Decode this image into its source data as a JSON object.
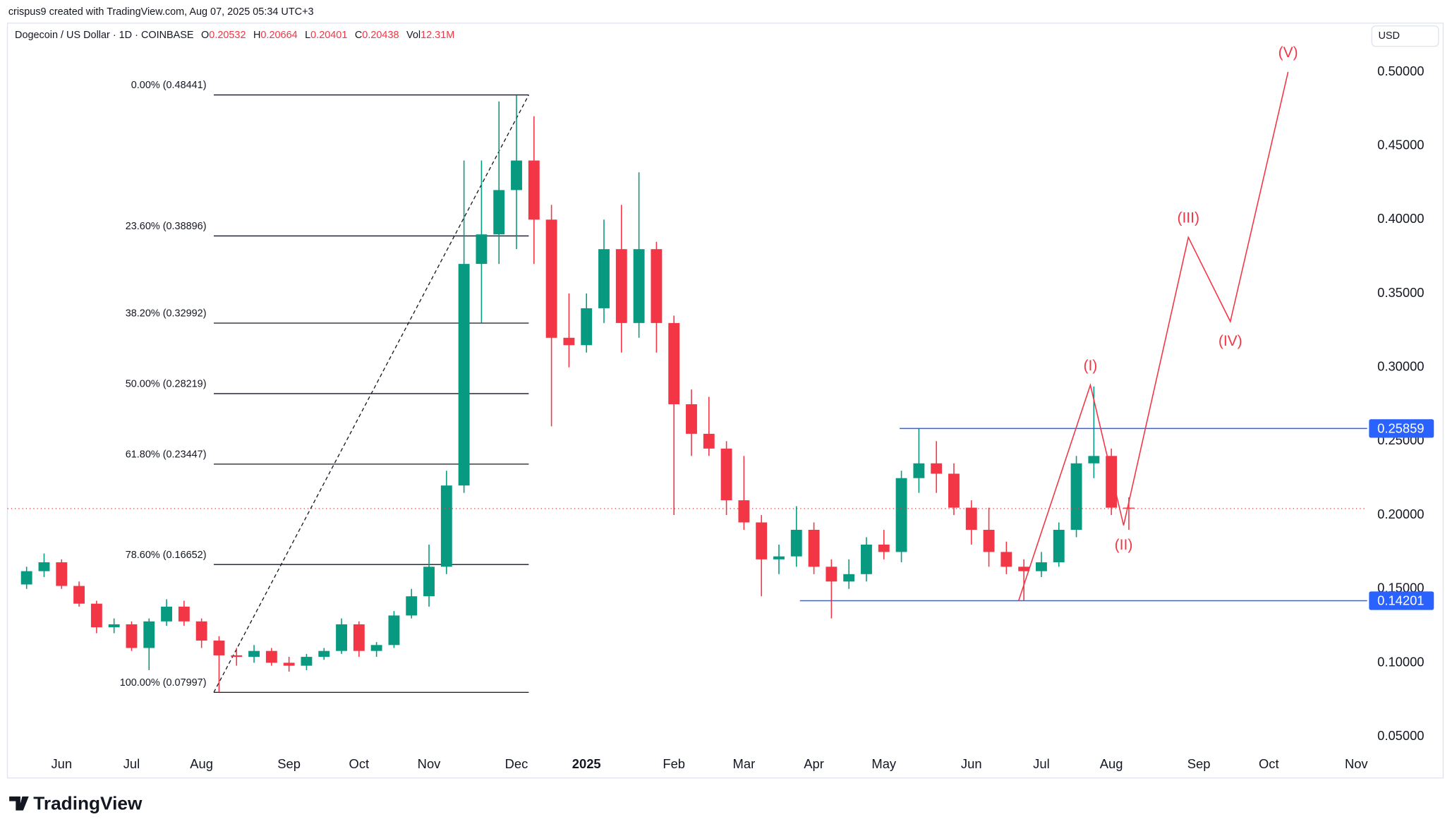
{
  "attribution": "crispus9 created with TradingView.com, Aug 07, 2025 05:34 UTC+3",
  "header": {
    "symbol": "Dogecoin / US Dollar · 1D · COINBASE",
    "quote": [
      {
        "key": "O",
        "value": "0.20532"
      },
      {
        "key": "H",
        "value": "0.20664"
      },
      {
        "key": "L",
        "value": "0.20401"
      },
      {
        "key": "C",
        "value": "0.20438"
      },
      {
        "key": "Vol",
        "value": "12.31M"
      }
    ]
  },
  "currency": "USD",
  "logo": "TradingView",
  "chart_data": {
    "type": "candlestick",
    "categories": [
      null,
      null,
      "Jun",
      null,
      null,
      null,
      "Jul",
      null,
      null,
      null,
      "Aug",
      null,
      null,
      null,
      null,
      "Sep",
      null,
      null,
      null,
      "Oct",
      null,
      null,
      null,
      "Nov",
      null,
      null,
      null,
      null,
      "Dec",
      null,
      null,
      null,
      "2025",
      null,
      null,
      null,
      null,
      "Feb",
      null,
      null,
      null,
      "Mar",
      null,
      null,
      null,
      "Apr",
      null,
      null,
      null,
      "May",
      null,
      null,
      null,
      null,
      "Jun",
      null,
      null,
      null,
      "Jul",
      null,
      null,
      null,
      "Aug",
      null,
      null,
      null,
      null,
      "Sep",
      null,
      null,
      null,
      "Oct",
      null,
      null,
      null,
      null,
      "Nov"
    ],
    "open": [
      0.153,
      0.162,
      0.168,
      0.152,
      0.14,
      0.124,
      0.126,
      0.11,
      0.128,
      0.138,
      0.128,
      0.115,
      0.105,
      0.104,
      0.108,
      0.1,
      0.098,
      0.104,
      0.108,
      0.126,
      0.108,
      0.112,
      0.132,
      0.145,
      0.165,
      0.22,
      0.37,
      0.39,
      0.42,
      0.44,
      0.4,
      0.32,
      0.315,
      0.34,
      0.38,
      0.33,
      0.38,
      0.33,
      0.275,
      0.255,
      0.245,
      0.21,
      0.195,
      0.17,
      0.172,
      0.19,
      0.165,
      0.155,
      0.16,
      0.18,
      0.175,
      0.225,
      0.235,
      0.228,
      0.205,
      0.19,
      0.175,
      0.165,
      0.162,
      0.168,
      0.19,
      0.235,
      0.24,
      0.205,
      null,
      null,
      null,
      null,
      null,
      null,
      null,
      null,
      null,
      null,
      null,
      null,
      null
    ],
    "high": [
      0.165,
      0.174,
      0.17,
      0.155,
      0.142,
      0.13,
      0.128,
      0.13,
      0.143,
      0.142,
      0.13,
      0.118,
      0.11,
      0.112,
      0.11,
      0.104,
      0.106,
      0.11,
      0.13,
      0.128,
      0.114,
      0.135,
      0.15,
      0.18,
      0.23,
      0.44,
      0.44,
      0.48,
      0.484,
      0.47,
      0.41,
      0.35,
      0.35,
      0.4,
      0.41,
      0.432,
      0.385,
      0.335,
      0.285,
      0.28,
      0.25,
      0.24,
      0.2,
      0.18,
      0.206,
      0.195,
      0.17,
      0.17,
      0.185,
      0.19,
      0.23,
      0.259,
      0.25,
      0.235,
      0.21,
      0.205,
      0.182,
      0.17,
      0.175,
      0.195,
      0.24,
      0.287,
      0.245,
      0.212,
      null,
      null,
      null,
      null,
      null,
      null,
      null,
      null,
      null,
      null,
      null,
      null,
      null
    ],
    "low": [
      0.15,
      0.158,
      0.15,
      0.138,
      0.12,
      0.12,
      0.108,
      0.095,
      0.125,
      0.125,
      0.11,
      0.08,
      0.098,
      0.1,
      0.098,
      0.094,
      0.095,
      0.102,
      0.106,
      0.104,
      0.104,
      0.11,
      0.13,
      0.138,
      0.16,
      0.215,
      0.33,
      0.37,
      0.38,
      0.37,
      0.26,
      0.3,
      0.31,
      0.33,
      0.31,
      0.32,
      0.31,
      0.2,
      0.24,
      0.24,
      0.2,
      0.19,
      0.145,
      0.16,
      0.165,
      0.16,
      0.13,
      0.15,
      0.155,
      0.17,
      0.168,
      0.215,
      0.215,
      0.2,
      0.18,
      0.165,
      0.16,
      0.142,
      0.158,
      0.165,
      0.185,
      0.225,
      0.2,
      0.19,
      null,
      null,
      null,
      null,
      null,
      null,
      null,
      null,
      null,
      null,
      null,
      null,
      null
    ],
    "close": [
      0.162,
      0.168,
      0.152,
      0.14,
      0.124,
      0.126,
      0.11,
      0.128,
      0.138,
      0.128,
      0.115,
      0.105,
      0.104,
      0.108,
      0.1,
      0.098,
      0.104,
      0.108,
      0.126,
      0.108,
      0.112,
      0.132,
      0.145,
      0.165,
      0.22,
      0.37,
      0.39,
      0.42,
      0.44,
      0.4,
      0.32,
      0.315,
      0.34,
      0.38,
      0.33,
      0.38,
      0.33,
      0.275,
      0.255,
      0.245,
      0.21,
      0.195,
      0.17,
      0.172,
      0.19,
      0.165,
      0.155,
      0.16,
      0.18,
      0.175,
      0.225,
      0.235,
      0.228,
      0.205,
      0.19,
      0.175,
      0.165,
      0.162,
      0.168,
      0.19,
      0.235,
      0.24,
      0.205,
      0.20438,
      null,
      null,
      null,
      null,
      null,
      null,
      null,
      null,
      null,
      null,
      null,
      null,
      null
    ],
    "up_color": "#089981",
    "down_color": "#f23645",
    "price_line_color": "#f23645",
    "ylim": [
      0.022,
      0.533
    ],
    "yticks": [
      {
        "value": 0.05,
        "label": "0.05000"
      },
      {
        "value": 0.1,
        "label": "0.10000"
      },
      {
        "value": 0.15,
        "label": "0.15000"
      },
      {
        "value": 0.2,
        "label": "0.20000"
      },
      {
        "value": 0.25,
        "label": "0.25000"
      },
      {
        "value": 0.3,
        "label": "0.30000"
      },
      {
        "value": 0.35,
        "label": "0.35000"
      },
      {
        "value": 0.4,
        "label": "0.40000"
      },
      {
        "value": 0.45,
        "label": "0.45000"
      },
      {
        "value": 0.5,
        "label": "0.50000"
      }
    ],
    "fib": {
      "start": 10.7,
      "end": 28.7,
      "color": "#131722",
      "levels": [
        {
          "value": 0.48441,
          "label": "0.00% (0.48441)"
        },
        {
          "value": 0.38896,
          "label": "23.60% (0.38896)"
        },
        {
          "value": 0.32992,
          "label": "38.20% (0.32992)"
        },
        {
          "value": 0.28219,
          "label": "50.00% (0.28219)"
        },
        {
          "value": 0.23447,
          "label": "61.80% (0.23447)"
        },
        {
          "value": 0.16652,
          "label": "78.60% (0.16652)"
        },
        {
          "value": 0.07997,
          "label": "100.00% (0.07997)"
        }
      ]
    },
    "levels": [
      {
        "value": 0.25859,
        "start": 49.9
      },
      {
        "value": 0.14201,
        "start": 44.2
      }
    ],
    "level_color": "#2962ff",
    "waves": {
      "color": "#f23645",
      "x": [
        56.7,
        60.8,
        62.7,
        66.4,
        68.8,
        72.1
      ],
      "values": [
        0.142,
        0.288,
        0.193,
        0.388,
        0.331,
        0.5
      ],
      "labels": [
        null,
        "(I)",
        "(II)",
        "(III)",
        "(IV)",
        "(V)"
      ]
    }
  }
}
